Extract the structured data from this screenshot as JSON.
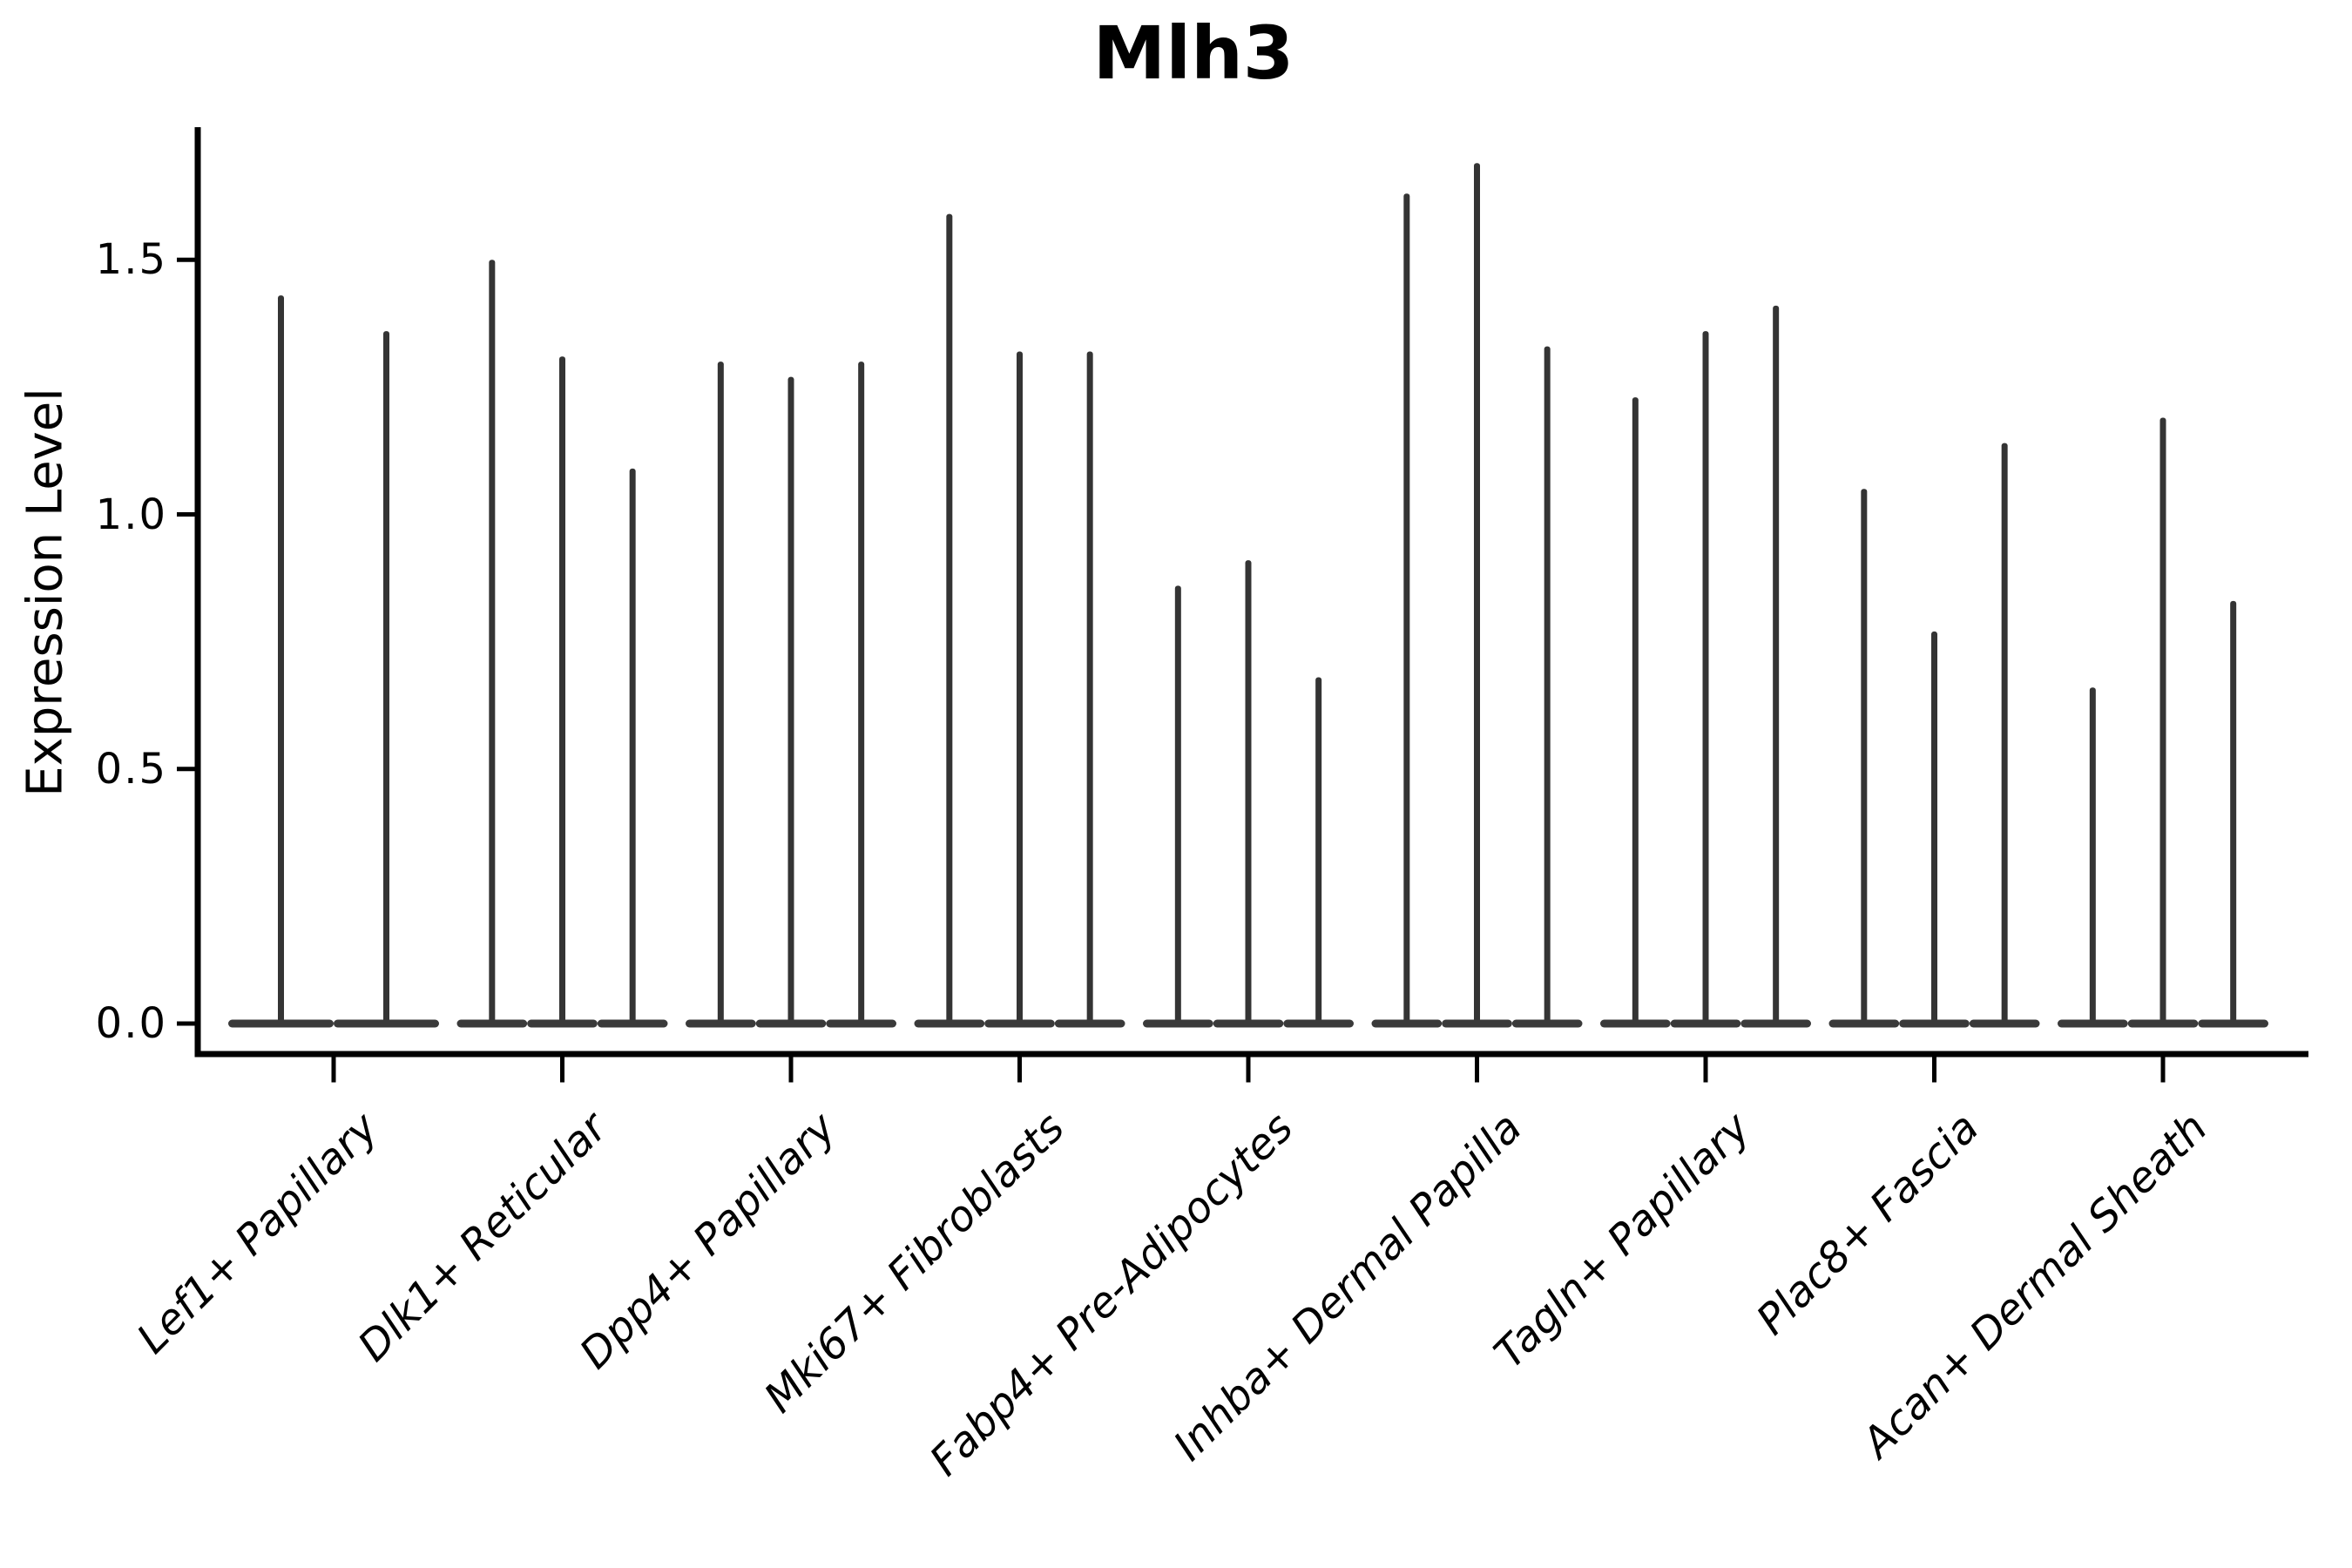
{
  "figure": {
    "title": "Mlh3",
    "ylabel": "Expression Level"
  },
  "colors": {
    "violin": "#3a3a3a",
    "spike": "#343434",
    "axis": "#000000",
    "text": "#000000",
    "background": "#ffffff"
  },
  "chart_data": {
    "type": "violin",
    "title": "Mlh3",
    "xlabel": "",
    "ylabel": "Expression Level",
    "ylim": [
      -0.06,
      1.76
    ],
    "yticks": [
      "0.0",
      "0.5",
      "1.0",
      "1.5"
    ],
    "grid": false,
    "legend": null,
    "description": "Violin plot of Mlh3 expression; each cell-type category holds adjacent near-flat violins lying on the 0.0 baseline with one thin density spike per violin rising to the listed maximum expression value.",
    "categories": [
      "Lef1+ Papillary",
      "Dlk1+ Reticular",
      "Dpp4+ Papillary",
      "Mki67+ Fibroblasts",
      "Fabp4+ Pre-Adipocytes",
      "Inhba+ Dermal Papilla",
      "Tagln+ Papillary",
      "Plac8+ Fascia",
      "Acan+ Dermal Sheath"
    ],
    "violin_spike_maxima": [
      [
        1.43,
        1.36
      ],
      [
        1.5,
        1.31,
        1.09
      ],
      [
        1.3,
        1.27,
        1.3
      ],
      [
        1.59,
        1.32,
        1.32
      ],
      [
        0.86,
        0.91,
        0.68
      ],
      [
        1.63,
        1.69,
        1.33
      ],
      [
        1.23,
        1.36,
        1.41
      ],
      [
        1.05,
        0.77,
        1.14
      ],
      [
        0.66,
        1.19,
        0.83
      ]
    ],
    "baseline_value": 0.0
  }
}
